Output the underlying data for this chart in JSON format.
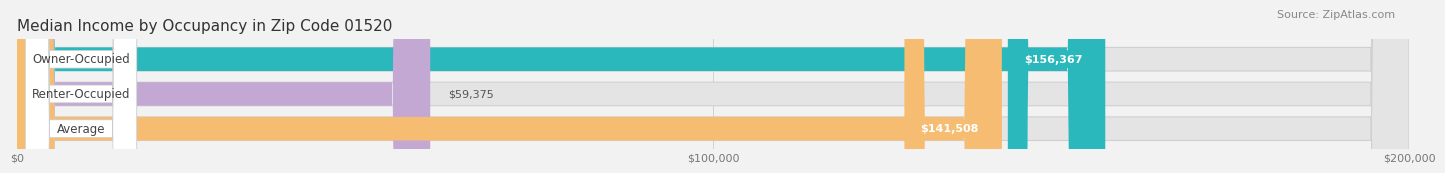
{
  "title": "Median Income by Occupancy in Zip Code 01520",
  "source": "Source: ZipAtlas.com",
  "categories": [
    "Owner-Occupied",
    "Renter-Occupied",
    "Average"
  ],
  "values": [
    156367,
    59375,
    141508
  ],
  "bar_colors": [
    "#2ab8bc",
    "#c4a8d4",
    "#f5bc72"
  ],
  "value_labels": [
    "$156,367",
    "$59,375",
    "$141,508"
  ],
  "xlim": [
    0,
    200000
  ],
  "xticks": [
    0,
    100000,
    200000
  ],
  "xtick_labels": [
    "$0",
    "$100,000",
    "$200,000"
  ],
  "background_color": "#f2f2f2",
  "bar_bg_color": "#e4e4e4",
  "title_fontsize": 11,
  "source_fontsize": 8,
  "label_fontsize": 8.5,
  "value_fontsize": 8
}
